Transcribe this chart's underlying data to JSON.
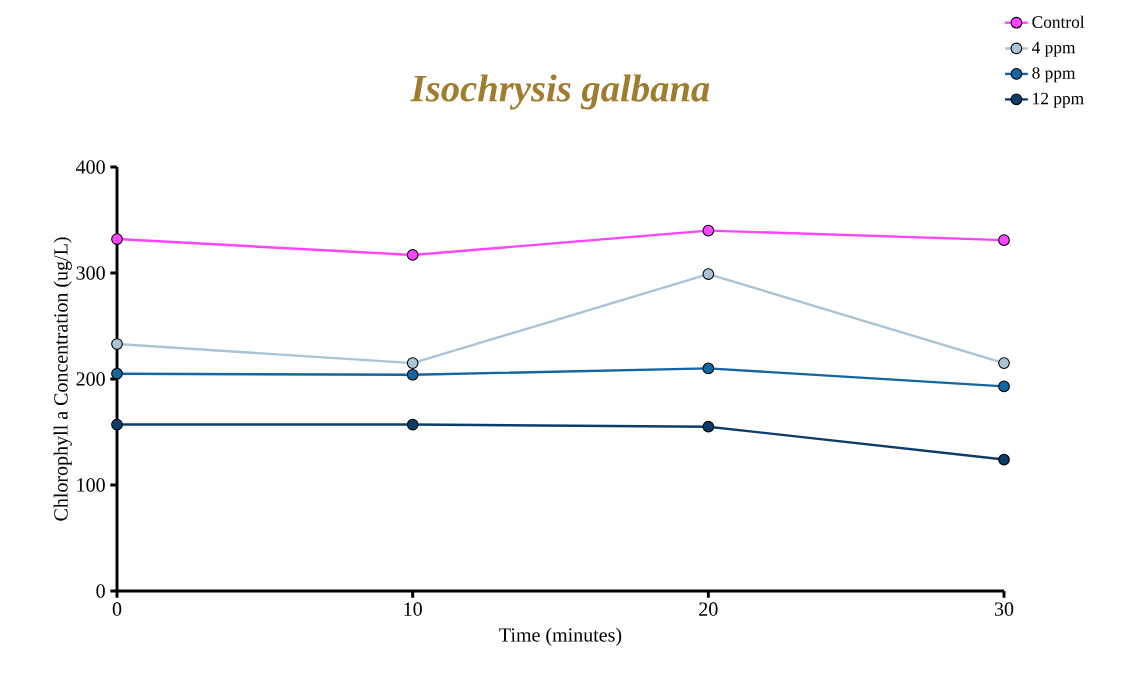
{
  "chart_data": {
    "type": "line",
    "title": "Isochrysis galbana",
    "xlabel": "Time (minutes)",
    "ylabel": "Chlorophyll a Concentration (ug/L)",
    "x": [
      0,
      10,
      20,
      30
    ],
    "series": [
      {
        "name": "Control",
        "color": "#ff44ff",
        "values": [
          332,
          317,
          340,
          331
        ]
      },
      {
        "name": "4 ppm",
        "color": "#aac4d6",
        "values": [
          233,
          215,
          299,
          215
        ]
      },
      {
        "name": "8 ppm",
        "color": "#1565a0",
        "values": [
          205,
          204,
          210,
          193
        ]
      },
      {
        "name": "12 ppm",
        "color": "#0d3c6b",
        "values": [
          157,
          157,
          155,
          124
        ]
      }
    ],
    "xlim": [
      0,
      30
    ],
    "ylim": [
      0,
      400
    ],
    "xticks": [
      0,
      10,
      20,
      30
    ],
    "yticks": [
      0,
      100,
      200,
      300,
      400
    ],
    "legend": "top right",
    "marker": "circle",
    "line_style": "solid"
  }
}
